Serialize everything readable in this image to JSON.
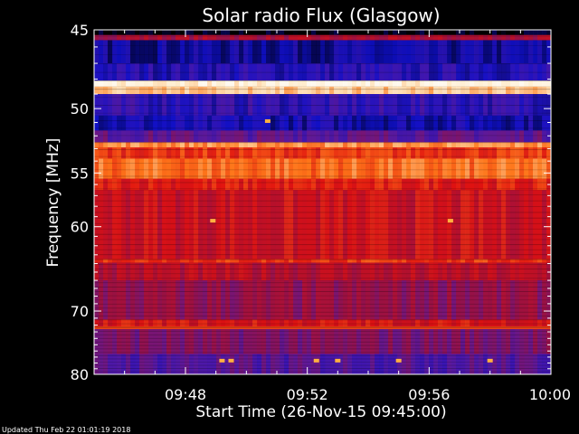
{
  "chart_data": {
    "type": "heatmap",
    "title": "Solar radio Flux (Glasgow)",
    "xlabel": "Start Time (26-Nov-15 09:45:00)",
    "ylabel": "Frequency [MHz]",
    "footer": "Updated Thu Feb 22 01:01:19 2018",
    "x_range_minutes": [
      0,
      15
    ],
    "x_ticks": [
      {
        "minute": 3,
        "label": "09:48"
      },
      {
        "minute": 7,
        "label": "09:52"
      },
      {
        "minute": 11,
        "label": "09:56"
      },
      {
        "minute": 15,
        "label": "10:00"
      }
    ],
    "y_scale": "reciprocal",
    "y_range_mhz": [
      45,
      80
    ],
    "y_ticks": [
      {
        "mhz": 45,
        "label": "45"
      },
      {
        "mhz": 50,
        "label": "50"
      },
      {
        "mhz": 55,
        "label": "55"
      },
      {
        "mhz": 60,
        "label": "60"
      },
      {
        "mhz": 70,
        "label": "70"
      },
      {
        "mhz": 80,
        "label": "80"
      }
    ],
    "colormap": [
      "#000000",
      "#1010c8",
      "#5a1aa0",
      "#a0103a",
      "#e01010",
      "#ff7a1a",
      "#ffe8c0",
      "#ffffff"
    ],
    "frequency_bands": [
      {
        "from_mhz": 45.0,
        "to_mhz": 45.3,
        "level": 0.0
      },
      {
        "from_mhz": 45.3,
        "to_mhz": 45.6,
        "level": 0.45
      },
      {
        "from_mhz": 45.6,
        "to_mhz": 47.0,
        "level": 0.12
      },
      {
        "from_mhz": 47.0,
        "to_mhz": 48.1,
        "level": 0.18
      },
      {
        "from_mhz": 48.1,
        "to_mhz": 48.5,
        "level": 0.92
      },
      {
        "from_mhz": 48.5,
        "to_mhz": 49.0,
        "level": 0.82
      },
      {
        "from_mhz": 49.0,
        "to_mhz": 50.5,
        "level": 0.2
      },
      {
        "from_mhz": 50.5,
        "to_mhz": 51.6,
        "level": 0.14
      },
      {
        "from_mhz": 51.6,
        "to_mhz": 52.5,
        "level": 0.3
      },
      {
        "from_mhz": 52.5,
        "to_mhz": 52.9,
        "level": 0.75
      },
      {
        "from_mhz": 52.9,
        "to_mhz": 53.8,
        "level": 0.62
      },
      {
        "from_mhz": 53.8,
        "to_mhz": 55.5,
        "level": 0.7
      },
      {
        "from_mhz": 55.5,
        "to_mhz": 56.5,
        "level": 0.58
      },
      {
        "from_mhz": 56.5,
        "to_mhz": 63.5,
        "level": 0.52
      },
      {
        "from_mhz": 63.5,
        "to_mhz": 63.9,
        "level": 0.62
      },
      {
        "from_mhz": 63.9,
        "to_mhz": 66.0,
        "level": 0.48
      },
      {
        "from_mhz": 66.0,
        "to_mhz": 71.2,
        "level": 0.4
      },
      {
        "from_mhz": 71.2,
        "to_mhz": 72.2,
        "level": 0.55
      },
      {
        "from_mhz": 72.2,
        "to_mhz": 72.6,
        "level": 0.64
      },
      {
        "from_mhz": 72.6,
        "to_mhz": 76.5,
        "level": 0.36
      },
      {
        "from_mhz": 76.5,
        "to_mhz": 80.0,
        "level": 0.28
      }
    ],
    "bursts": [
      {
        "minute": 3.9,
        "mhz": 59.4
      },
      {
        "minute": 11.7,
        "mhz": 59.4
      },
      {
        "minute": 5.7,
        "mhz": 50.9
      },
      {
        "minute": 4.2,
        "mhz": 77.6
      },
      {
        "minute": 4.5,
        "mhz": 77.6
      },
      {
        "minute": 7.3,
        "mhz": 77.6
      },
      {
        "minute": 8.0,
        "mhz": 77.6
      },
      {
        "minute": 10.0,
        "mhz": 77.6
      },
      {
        "minute": 13.0,
        "mhz": 77.6
      }
    ]
  }
}
